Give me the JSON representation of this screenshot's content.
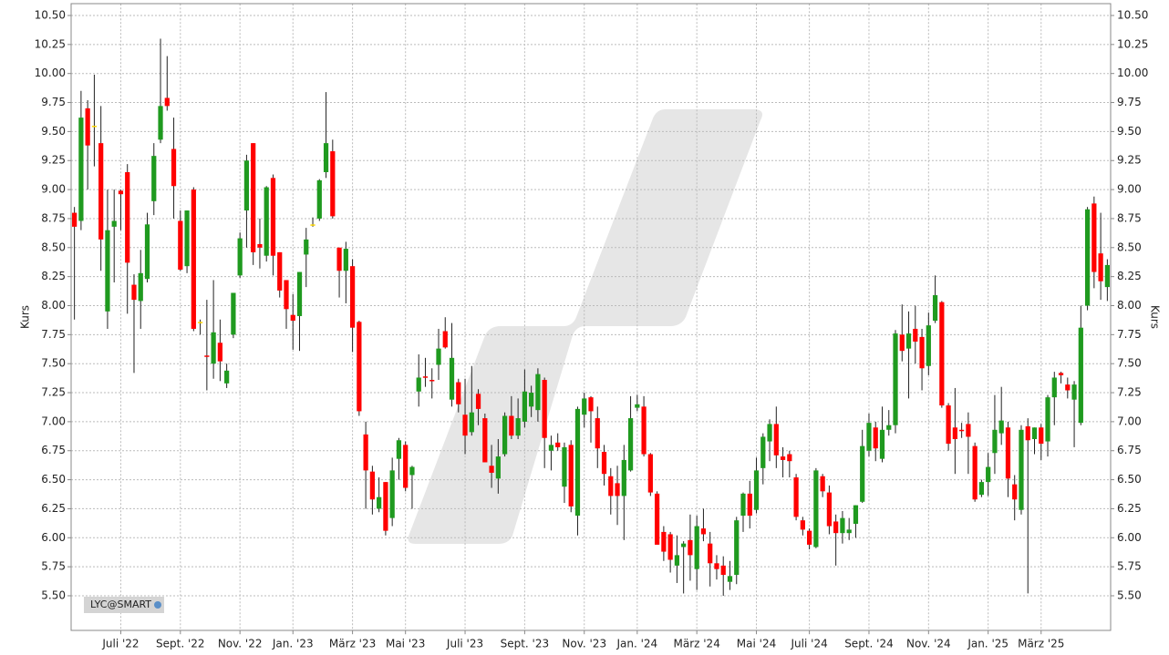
{
  "chart_data": {
    "type": "candlestick",
    "y_label": "Kurs",
    "legend_tag": "LYC@SMART",
    "up_color": "#1f9a1f",
    "down_color": "#ff0000",
    "flat_color": "#ffd700",
    "grid": true,
    "ylim": [
      5.2,
      10.6
    ],
    "yticks": [
      {
        "value": 5.5,
        "label": "5.50"
      },
      {
        "value": 5.75,
        "label": "5.75"
      },
      {
        "value": 6,
        "label": "6.00"
      },
      {
        "value": 6.25,
        "label": "6.25"
      },
      {
        "value": 6.5,
        "label": "6.50"
      },
      {
        "value": 6.75,
        "label": "6.75"
      },
      {
        "value": 7,
        "label": "7.00"
      },
      {
        "value": 7.25,
        "label": "7.25"
      },
      {
        "value": 7.5,
        "label": "7.50"
      },
      {
        "value": 7.75,
        "label": "7.75"
      },
      {
        "value": 8,
        "label": "8.00"
      },
      {
        "value": 8.25,
        "label": "8.25"
      },
      {
        "value": 8.5,
        "label": "8.50"
      },
      {
        "value": 8.75,
        "label": "8.75"
      },
      {
        "value": 9,
        "label": "9.00"
      },
      {
        "value": 9.25,
        "label": "9.25"
      },
      {
        "value": 9.5,
        "label": "9.50"
      },
      {
        "value": 9.75,
        "label": "9.75"
      },
      {
        "value": 10,
        "label": "10.00"
      },
      {
        "value": 10.25,
        "label": "10.25"
      },
      {
        "value": 10.5,
        "label": "10.50"
      }
    ],
    "categories": [
      null,
      null,
      null,
      null,
      null,
      null,
      null,
      "Juli '22",
      null,
      null,
      null,
      null,
      null,
      null,
      null,
      null,
      "Sept. '22",
      null,
      null,
      null,
      null,
      null,
      null,
      null,
      null,
      "Nov. '22",
      null,
      null,
      null,
      null,
      null,
      null,
      null,
      "Jan. '23",
      null,
      null,
      null,
      null,
      null,
      null,
      null,
      null,
      "März '23",
      null,
      null,
      null,
      null,
      null,
      null,
      null,
      "Mai '23",
      null,
      null,
      null,
      null,
      null,
      null,
      null,
      null,
      "Juli '23",
      null,
      null,
      null,
      null,
      null,
      null,
      null,
      null,
      "Sept. '23",
      null,
      null,
      null,
      null,
      null,
      null,
      null,
      null,
      "Nov. '23",
      null,
      null,
      null,
      null,
      null,
      null,
      null,
      "Jan. '24",
      null,
      null,
      null,
      null,
      null,
      null,
      null,
      null,
      "März '24",
      null,
      null,
      null,
      null,
      null,
      null,
      null,
      null,
      "Mai '24",
      null,
      null,
      null,
      null,
      null,
      null,
      null,
      "Juli '24",
      null,
      null,
      null,
      null,
      null,
      null,
      null,
      null,
      "Sept. '24",
      null,
      null,
      null,
      null,
      null,
      null,
      null,
      null,
      "Nov. '24",
      null,
      null,
      null,
      null,
      null,
      null,
      null,
      null,
      "Jan. '25",
      null,
      null,
      null,
      null,
      null,
      null,
      null,
      "März '25",
      null,
      null,
      null,
      null,
      null,
      null,
      null,
      null,
      null,
      null
    ],
    "open": [
      8.8,
      8.73,
      9.7,
      9.55,
      9.4,
      7.95,
      8.68,
      8.99,
      9.15,
      8.18,
      8.04,
      8.23,
      8.9,
      9.43,
      9.79,
      9.35,
      8.73,
      8.34,
      9.0,
      7.86,
      7.57,
      7.5,
      7.68,
      7.33,
      7.75,
      8.26,
      8.82,
      9.4,
      8.53,
      8.43,
      9.1,
      8.46,
      8.22,
      7.92,
      7.91,
      8.44,
      8.7,
      8.75,
      9.15,
      9.33,
      8.5,
      8.3,
      8.34,
      7.86,
      6.89,
      6.57,
      6.25,
      6.48,
      6.17,
      6.68,
      6.8,
      6.54,
      7.26,
      7.39,
      7.36,
      7.49,
      7.78,
      7.19,
      7.34,
      7.06,
      6.91,
      7.24,
      7.03,
      6.62,
      6.51,
      6.72,
      7.05,
      6.88,
      7.0,
      7.13,
      7.1,
      7.36,
      6.75,
      6.82,
      6.44,
      6.8,
      6.19,
      7.06,
      7.21,
      7.03,
      6.74,
      6.53,
      6.47,
      6.36,
      6.58,
      7.12,
      7.13,
      6.72,
      6.38,
      6.05,
      6.03,
      5.76,
      5.92,
      5.98,
      5.73,
      6.08,
      5.95,
      5.78,
      5.76,
      5.62,
      5.68,
      6.19,
      6.38,
      6.24,
      6.6,
      6.83,
      6.98,
      6.7,
      6.72,
      6.52,
      6.15,
      6.06,
      5.92,
      6.53,
      6.39,
      6.14,
      6.04,
      6.04,
      6.12,
      6.31,
      6.75,
      6.95,
      6.68,
      6.93,
      6.97,
      7.75,
      7.63,
      7.8,
      7.73,
      7.48,
      7.87,
      8.03,
      7.14,
      6.95,
      6.93,
      6.98,
      6.79,
      6.37,
      6.48,
      6.73,
      6.9,
      6.95,
      6.46,
      6.24,
      6.96,
      6.85,
      6.95,
      6.83,
      7.21,
      7.42,
      7.32,
      7.19,
      6.99,
      8.0,
      8.88,
      8.45,
      8.16
    ],
    "high": [
      8.85,
      9.85,
      9.77,
      9.99,
      9.72,
      9.0,
      9.0,
      9.0,
      9.22,
      8.27,
      8.48,
      8.8,
      9.4,
      10.3,
      10.15,
      9.62,
      8.82,
      8.82,
      9.02,
      7.88,
      8.05,
      8.22,
      7.88,
      7.5,
      8.11,
      8.63,
      9.3,
      9.4,
      8.75,
      9.03,
      9.13,
      8.46,
      8.22,
      8.1,
      8.29,
      8.67,
      8.76,
      9.09,
      9.84,
      9.43,
      8.5,
      8.55,
      8.4,
      7.87,
      7.0,
      6.62,
      6.52,
      6.48,
      6.69,
      6.86,
      6.83,
      6.62,
      7.58,
      7.55,
      7.46,
      7.8,
      7.9,
      7.85,
      7.37,
      7.37,
      7.48,
      7.28,
      7.07,
      6.8,
      6.85,
      7.08,
      7.22,
      7.2,
      7.45,
      7.31,
      7.46,
      7.38,
      6.88,
      6.9,
      6.82,
      6.84,
      7.13,
      7.25,
      7.22,
      7.13,
      6.8,
      6.6,
      6.62,
      6.8,
      7.22,
      7.23,
      7.22,
      6.73,
      6.4,
      6.1,
      6.05,
      6.02,
      5.97,
      6.2,
      6.19,
      6.25,
      6.05,
      5.85,
      5.84,
      5.8,
      6.18,
      6.39,
      6.49,
      6.69,
      6.9,
      7.02,
      7.13,
      6.78,
      6.75,
      6.55,
      6.18,
      6.08,
      6.6,
      6.55,
      6.45,
      6.2,
      6.23,
      6.17,
      6.28,
      6.93,
      7.07,
      7.0,
      7.13,
      7.1,
      7.79,
      8.01,
      7.95,
      8.0,
      7.8,
      7.94,
      8.26,
      8.04,
      7.16,
      7.29,
      6.99,
      7.08,
      6.82,
      6.5,
      6.73,
      7.23,
      7.3,
      7.0,
      6.54,
      6.97,
      7.03,
      6.95,
      6.98,
      7.23,
      7.43,
      7.43,
      7.38,
      7.35,
      8.0,
      8.85,
      8.94,
      8.8,
      8.4
    ],
    "low": [
      7.88,
      8.65,
      9.0,
      9.2,
      8.3,
      7.8,
      8.2,
      8.65,
      7.93,
      7.42,
      7.8,
      8.2,
      8.78,
      9.4,
      9.68,
      8.75,
      8.3,
      8.28,
      7.78,
      7.75,
      7.27,
      7.37,
      7.35,
      7.29,
      7.72,
      8.24,
      8.5,
      8.35,
      8.32,
      8.38,
      8.26,
      8.07,
      7.8,
      7.62,
      7.61,
      8.16,
      8.68,
      8.73,
      9.1,
      8.75,
      8.07,
      8.02,
      7.6,
      7.05,
      6.25,
      6.2,
      6.22,
      6.02,
      6.1,
      6.5,
      6.4,
      6.25,
      7.13,
      7.3,
      7.2,
      7.36,
      7.63,
      7.13,
      7.08,
      6.72,
      6.88,
      6.97,
      6.65,
      6.43,
      6.38,
      6.7,
      6.85,
      6.85,
      6.95,
      7.04,
      7.0,
      6.6,
      6.58,
      6.75,
      6.3,
      6.22,
      6.02,
      6.95,
      6.82,
      6.6,
      6.45,
      6.2,
      6.11,
      5.98,
      6.57,
      7.09,
      6.7,
      6.36,
      5.94,
      5.8,
      5.7,
      5.61,
      5.52,
      5.63,
      5.55,
      5.97,
      5.58,
      5.64,
      5.5,
      5.55,
      5.6,
      6.05,
      6.08,
      6.21,
      6.46,
      6.66,
      6.6,
      6.52,
      6.52,
      6.15,
      6.02,
      5.9,
      5.91,
      6.35,
      6.03,
      5.76,
      5.95,
      5.98,
      6.0,
      6.3,
      6.7,
      6.66,
      6.65,
      6.88,
      6.9,
      7.52,
      7.2,
      7.5,
      7.27,
      7.4,
      7.85,
      7.12,
      6.75,
      6.55,
      6.86,
      6.55,
      6.31,
      6.35,
      6.36,
      6.55,
      6.8,
      6.35,
      6.15,
      6.2,
      5.52,
      6.72,
      6.67,
      6.7,
      6.97,
      7.33,
      7.2,
      6.78,
      6.97,
      7.96,
      8.15,
      8.05,
      8.04
    ],
    "close": [
      8.68,
      9.62,
      9.38,
      9.55,
      8.57,
      8.65,
      8.73,
      8.96,
      8.37,
      8.05,
      8.28,
      8.7,
      9.29,
      9.72,
      9.72,
      9.03,
      8.31,
      8.82,
      7.8,
      7.86,
      7.56,
      7.77,
      7.52,
      7.44,
      8.11,
      8.58,
      9.25,
      8.46,
      8.5,
      9.02,
      8.43,
      8.13,
      7.97,
      7.87,
      8.29,
      8.57,
      8.7,
      9.08,
      9.4,
      8.77,
      8.3,
      8.49,
      7.81,
      7.09,
      6.58,
      6.33,
      6.35,
      6.06,
      6.58,
      6.84,
      6.43,
      6.61,
      7.38,
      7.38,
      7.35,
      7.63,
      7.64,
      7.55,
      7.15,
      6.88,
      7.08,
      7.11,
      6.65,
      6.56,
      6.7,
      7.05,
      6.88,
      7.03,
      7.26,
      7.25,
      7.41,
      6.86,
      6.8,
      6.78,
      6.78,
      6.27,
      7.11,
      7.2,
      7.09,
      6.77,
      6.55,
      6.36,
      6.36,
      6.67,
      7.03,
      7.15,
      6.72,
      6.39,
      5.94,
      5.88,
      5.81,
      5.85,
      5.95,
      5.85,
      6.1,
      6.03,
      5.78,
      5.73,
      5.68,
      5.67,
      6.15,
      6.38,
      6.19,
      6.58,
      6.87,
      6.98,
      6.71,
      6.67,
      6.66,
      6.18,
      6.07,
      5.94,
      6.58,
      6.4,
      6.1,
      6.04,
      6.17,
      6.07,
      6.28,
      6.79,
      6.99,
      6.77,
      6.93,
      6.97,
      7.76,
      7.61,
      7.76,
      7.69,
      7.46,
      7.83,
      8.09,
      7.14,
      6.81,
      6.85,
      6.92,
      6.87,
      6.33,
      6.48,
      6.61,
      6.93,
      7.01,
      6.51,
      6.33,
      6.93,
      6.84,
      6.95,
      6.81,
      7.21,
      7.38,
      7.4,
      7.27,
      7.32,
      7.81,
      8.83,
      8.29,
      8.21,
      8.35
    ]
  }
}
